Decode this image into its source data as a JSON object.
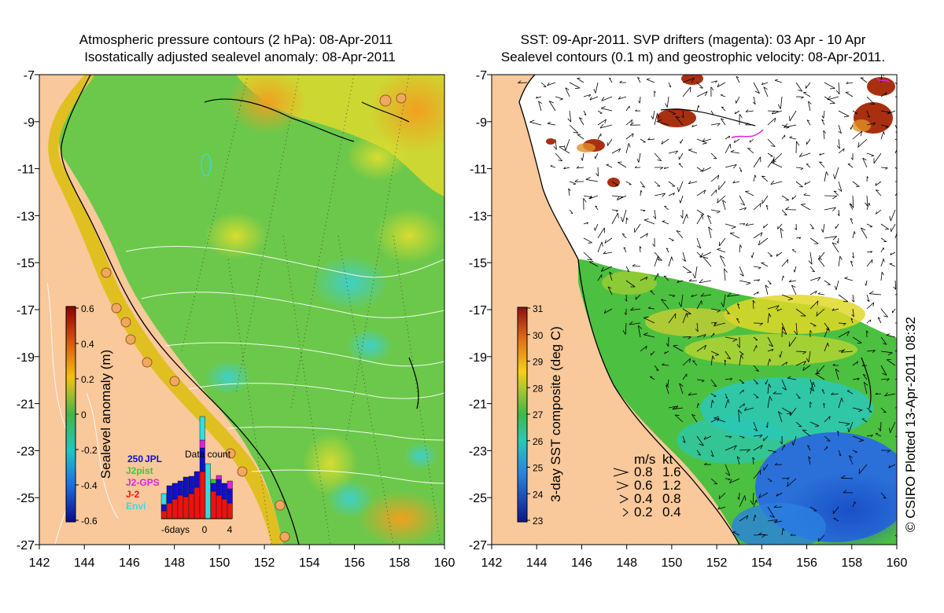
{
  "left_panel": {
    "title_line1": "Atmospheric pressure contours (2 hPa): 08-Apr-2011",
    "title_line2": "Isostatically adjusted sealevel anomaly: 08-Apr-2011",
    "colorbar_label": "Sealevel anomaly (m)",
    "colorbar_ticks": [
      "0.6",
      "0.4",
      "0.2",
      "0",
      "-0.2",
      "-0.4",
      "-0.6"
    ],
    "inset": {
      "title": "Data count",
      "count_label": "250",
      "legend": [
        {
          "label": "JPL",
          "color": "#1010cc"
        },
        {
          "label": "J2pist",
          "color": "#33cc33"
        },
        {
          "label": "J2-GPS",
          "color": "#dd22dd"
        },
        {
          "label": "J-2",
          "color": "#ee1111"
        },
        {
          "label": "Envi",
          "color": "#33dddd"
        }
      ],
      "x_ticks": [
        "-6days",
        "0",
        "4"
      ]
    }
  },
  "right_panel": {
    "title_line1": "SST: 09-Apr-2011. SVP drifters (magenta): 03 Apr - 10 Apr",
    "title_line2": "Sealevel contours (0.1 m) and geostrophic velocity: 08-Apr-2011.",
    "colorbar_label": "3-day SST composite (deg C)",
    "colorbar_ticks": [
      "31",
      "30",
      "29",
      "28",
      "27",
      "26",
      "25",
      "24",
      "23"
    ],
    "velocity_legend": {
      "header_ms": "m/s",
      "header_kt": "kt",
      "rows": [
        {
          "ms": "0.8",
          "kt": "1.6"
        },
        {
          "ms": "0.6",
          "kt": "1.2"
        },
        {
          "ms": "0.4",
          "kt": "0.8"
        },
        {
          "ms": "0.2",
          "kt": "0.4"
        }
      ]
    }
  },
  "y_ticks": [
    "-7",
    "-9",
    "-11",
    "-13",
    "-15",
    "-17",
    "-19",
    "-21",
    "-23",
    "-25",
    "-27"
  ],
  "x_ticks": [
    "142",
    "144",
    "146",
    "148",
    "150",
    "152",
    "154",
    "156",
    "158",
    "160"
  ],
  "credit": "© CSIRO Plotted 13-Apr-2011 08:32",
  "colors": {
    "land": "#f9c89b",
    "sla_green": "#6cc84a",
    "sla_yellow": "#d7d82a",
    "sla_orange": "#f0a81a",
    "sst_blue": "#2a6fd8",
    "sst_cyan": "#3fc9c0"
  }
}
